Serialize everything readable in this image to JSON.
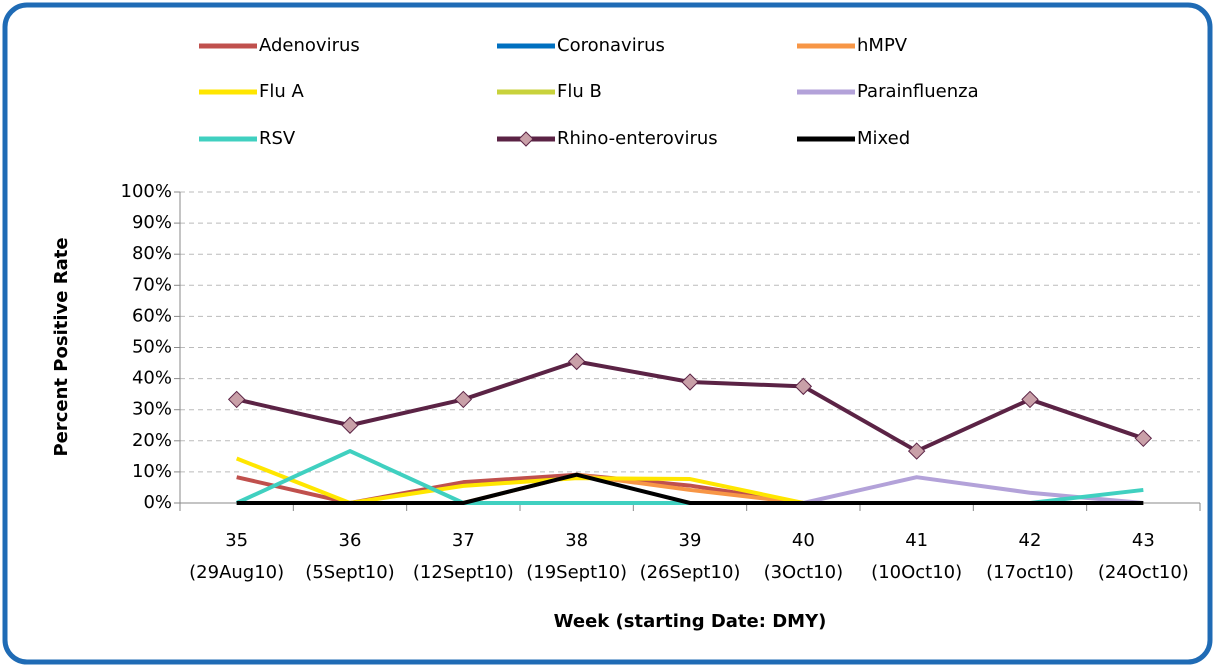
{
  "chart_data": {
    "type": "line",
    "y_axis_label": "Percent Positive Rate",
    "x_axis_label": "Week (starting Date: DMY)",
    "categories": [
      [
        "35",
        "(29Aug10)"
      ],
      [
        "36",
        "(5Sept10)"
      ],
      [
        "37",
        "(12Sept10)"
      ],
      [
        "38",
        "(19Sept10)"
      ],
      [
        "39",
        "(26Sept10)"
      ],
      [
        "40",
        "(3Oct10)"
      ],
      [
        "41",
        "(10Oct10)"
      ],
      [
        "42",
        "(17oct10)"
      ],
      [
        "43",
        "(24Oct10)"
      ]
    ],
    "ylim": [
      0,
      100
    ],
    "yticks": [
      {
        "value": 0,
        "label": "0%"
      },
      {
        "value": 10,
        "label": "10%"
      },
      {
        "value": 20,
        "label": "20%"
      },
      {
        "value": 30,
        "label": "30%"
      },
      {
        "value": 40,
        "label": "40%"
      },
      {
        "value": 50,
        "label": "50%"
      },
      {
        "value": 60,
        "label": "60%"
      },
      {
        "value": 70,
        "label": "70%"
      },
      {
        "value": 80,
        "label": "80%"
      },
      {
        "value": 90,
        "label": "90%"
      },
      {
        "value": 100,
        "label": "100%"
      }
    ],
    "grid": true,
    "legend": "top",
    "series": [
      {
        "name": "Adenovirus",
        "color": "#c0504d",
        "values": [
          8.3,
          0,
          6.7,
          9.1,
          5.6,
          0,
          0,
          0,
          0
        ]
      },
      {
        "name": "Coronavirus",
        "color": "#0070c0",
        "values": [
          0,
          0,
          0,
          0,
          0,
          0,
          0,
          0,
          0
        ]
      },
      {
        "name": "hMPV",
        "color": "#f79646",
        "values": [
          0,
          0,
          0,
          9.1,
          4.2,
          0,
          0,
          0,
          0
        ]
      },
      {
        "name": "Flu A",
        "color": "#ffe600",
        "values": [
          14.3,
          0,
          5.5,
          8,
          7.7,
          0,
          0,
          0,
          0
        ]
      },
      {
        "name": "Flu B",
        "color": "#c8d23c",
        "values": [
          0,
          0,
          0,
          0,
          0,
          0,
          0,
          0,
          0
        ]
      },
      {
        "name": "Parainfluenza",
        "color": "#b3a2d9",
        "values": [
          0,
          0,
          0,
          0,
          0,
          0,
          8.3,
          3.3,
          0
        ]
      },
      {
        "name": "RSV",
        "color": "#40d0c0",
        "values": [
          0,
          16.7,
          0,
          0,
          0,
          0,
          0,
          0,
          4.2
        ]
      },
      {
        "name": "Rhino-enterovirus",
        "color": "#5b2345",
        "marker": "diamond",
        "marker_color": "#c9a0a8",
        "values": [
          33.3,
          25,
          33.3,
          45.5,
          38.9,
          37.5,
          16.7,
          33.3,
          20.8
        ]
      },
      {
        "name": "Mixed",
        "color": "#000000",
        "values": [
          0,
          0,
          0,
          9.1,
          0,
          0,
          0,
          0,
          0
        ]
      }
    ]
  }
}
